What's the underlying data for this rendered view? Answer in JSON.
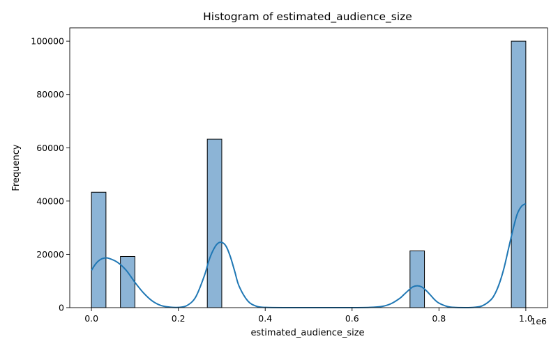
{
  "chart_data": {
    "type": "bar",
    "title": "Histogram of estimated_audience_size",
    "xlabel": "estimated_audience_size",
    "ylabel": "Frequency",
    "x_offset_label": "1e6",
    "xlim": [
      -0.05,
      1.05
    ],
    "ylim": [
      0,
      105000
    ],
    "x_ticks": [
      0.0,
      0.2,
      0.4,
      0.6,
      0.8,
      1.0
    ],
    "x_tick_labels": [
      "0.0",
      "0.2",
      "0.4",
      "0.6",
      "0.8",
      "1.0"
    ],
    "y_ticks": [
      0,
      20000,
      40000,
      60000,
      80000,
      100000
    ],
    "y_tick_labels": [
      "0",
      "20000",
      "40000",
      "60000",
      "80000",
      "100000"
    ],
    "bin_start": 0.0,
    "bin_end": 1.0,
    "bin_count": 30,
    "bins": [
      {
        "bin": 0,
        "count": 43300
      },
      {
        "bin": 2,
        "count": 19200
      },
      {
        "bin": 8,
        "count": 63200
      },
      {
        "bin": 22,
        "count": 21300
      },
      {
        "bin": 29,
        "count": 100000
      }
    ],
    "kde": {
      "x": [
        0.0,
        0.01,
        0.02,
        0.03,
        0.04,
        0.06,
        0.08,
        0.1,
        0.12,
        0.14,
        0.16,
        0.18,
        0.2,
        0.22,
        0.24,
        0.26,
        0.27,
        0.28,
        0.29,
        0.3,
        0.31,
        0.32,
        0.33,
        0.34,
        0.36,
        0.38,
        0.4,
        0.45,
        0.5,
        0.55,
        0.6,
        0.64,
        0.67,
        0.69,
        0.71,
        0.72,
        0.73,
        0.74,
        0.75,
        0.76,
        0.77,
        0.78,
        0.79,
        0.8,
        0.82,
        0.84,
        0.86,
        0.88,
        0.9,
        0.92,
        0.93,
        0.94,
        0.95,
        0.96,
        0.97,
        0.98,
        0.99,
        1.0
      ],
      "y": [
        14000,
        16500,
        18000,
        18600,
        18500,
        17000,
        14000,
        9500,
        5500,
        2500,
        800,
        200,
        100,
        800,
        4000,
        12000,
        17500,
        21500,
        24000,
        24500,
        23000,
        19000,
        13500,
        8000,
        2500,
        500,
        100,
        0,
        0,
        0,
        0,
        100,
        500,
        1500,
        3500,
        5000,
        6500,
        7800,
        8200,
        7800,
        6500,
        4800,
        3000,
        1700,
        400,
        50,
        0,
        100,
        700,
        3000,
        5500,
        9500,
        15000,
        22000,
        29000,
        35000,
        38000,
        39000
      ]
    },
    "bar_color": "#8cb4d6",
    "bar_edge_color": "#000000",
    "kde_color": "#1f77b4",
    "grid": false,
    "legend": "none"
  }
}
